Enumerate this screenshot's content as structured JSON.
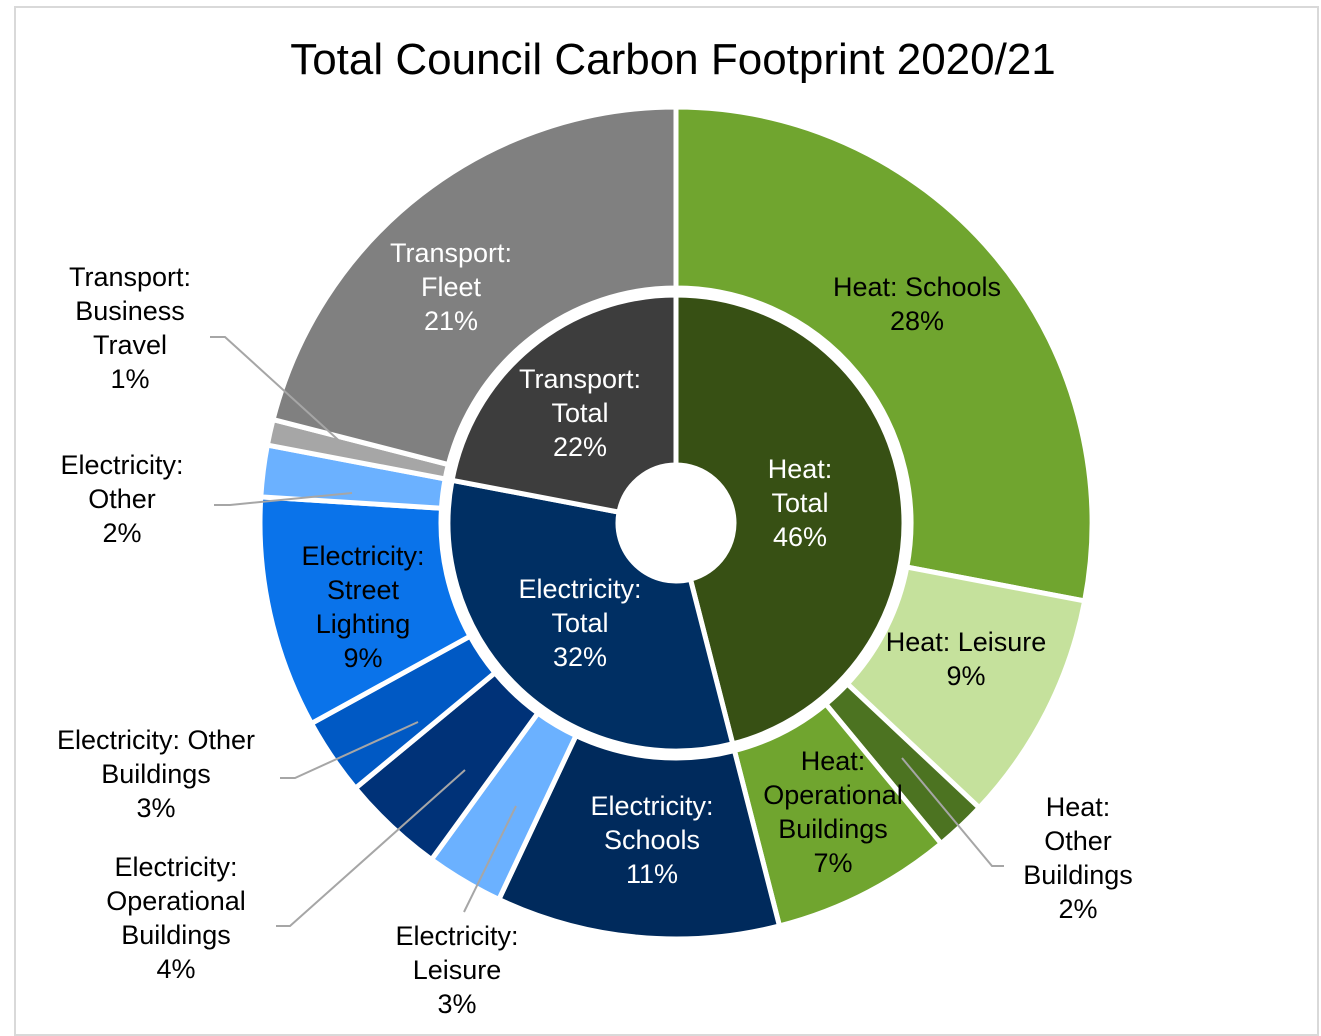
{
  "chart_data": {
    "type": "pie",
    "subtype": "nested-donut",
    "title": "Total Council Carbon Footprint 2020/21",
    "inner_ring": [
      {
        "label": "Heat: Total",
        "value": 46,
        "display": "46%",
        "color": "#375014",
        "text_color": "#ffffff"
      },
      {
        "label": "Electricity: Total",
        "value": 32,
        "display": "32%",
        "color": "#002f63",
        "text_color": "#ffffff"
      },
      {
        "label": "Transport: Total",
        "value": 22,
        "display": "22%",
        "color": "#3d3d3d",
        "text_color": "#ffffff"
      }
    ],
    "outer_ring": [
      {
        "label": "Heat: Schools",
        "value": 28,
        "display": "28%",
        "color": "#70a52f",
        "text_color": "#000000"
      },
      {
        "label": "Heat: Leisure",
        "value": 9,
        "display": "9%",
        "color": "#c5e19c",
        "text_color": "#000000"
      },
      {
        "label": "Heat: Other Buildings",
        "value": 2,
        "display": "2%",
        "color": "#4c7321",
        "text_color": "#000000"
      },
      {
        "label": "Heat: Operational Buildings",
        "value": 7,
        "display": "7%",
        "color": "#70a52f",
        "text_color": "#000000"
      },
      {
        "label": "Electricity: Schools",
        "value": 11,
        "display": "11%",
        "color": "#002a5c",
        "text_color": "#ffffff"
      },
      {
        "label": "Electricity: Leisure",
        "value": 3,
        "display": "3%",
        "color": "#6bb1ff",
        "text_color": "#000000"
      },
      {
        "label": "Electricity: Operational Buildings",
        "value": 4,
        "display": "4%",
        "color": "#003278",
        "text_color": "#000000"
      },
      {
        "label": "Electricity: Other Buildings",
        "value": 3,
        "display": "3%",
        "color": "#0059c4",
        "text_color": "#000000"
      },
      {
        "label": "Electricity: Street Lighting",
        "value": 9,
        "display": "9%",
        "color": "#0a73ea",
        "text_color": "#000000"
      },
      {
        "label": "Electricity: Other",
        "value": 2,
        "display": "2%",
        "color": "#6bb1ff",
        "text_color": "#000000"
      },
      {
        "label": "Transport: Business Travel",
        "value": 1,
        "display": "1%",
        "color": "#a6a6a6",
        "text_color": "#000000"
      },
      {
        "label": "Transport: Fleet",
        "value": 21,
        "display": "21%",
        "color": "#808080",
        "text_color": "#ffffff"
      }
    ],
    "label_lines": {
      "Heat: Total": [
        "Heat:",
        "Total",
        "46%"
      ],
      "Electricity: Total": [
        "Electricity:",
        "Total",
        "32%"
      ],
      "Transport: Total": [
        "Transport:",
        "Total",
        "22%"
      ],
      "Heat: Schools": [
        "Heat: Schools",
        "28%"
      ],
      "Heat: Leisure": [
        "Heat: Leisure",
        "9%"
      ],
      "Heat: Other Buildings": [
        "Heat:",
        "Other",
        "Buildings",
        "2%"
      ],
      "Heat: Operational Buildings": [
        "Heat:",
        "Operational",
        "Buildings",
        "7%"
      ],
      "Electricity: Schools": [
        "Electricity:",
        "Schools",
        "11%"
      ],
      "Electricity: Leisure": [
        "Electricity:",
        "Leisure",
        "3%"
      ],
      "Electricity: Operational Buildings": [
        "Electricity:",
        "Operational",
        "Buildings",
        "4%"
      ],
      "Electricity: Other Buildings": [
        "Electricity: Other",
        "Buildings",
        "3%"
      ],
      "Electricity: Street Lighting": [
        "Electricity:",
        "Street",
        "Lighting",
        "9%"
      ],
      "Electricity: Other": [
        "Electricity:",
        "Other",
        "2%"
      ],
      "Transport: Business Travel": [
        "Transport:",
        "Business",
        "Travel",
        "1%"
      ],
      "Transport: Fleet": [
        "Transport:",
        "Fleet",
        "21%"
      ]
    },
    "legend": "none"
  }
}
